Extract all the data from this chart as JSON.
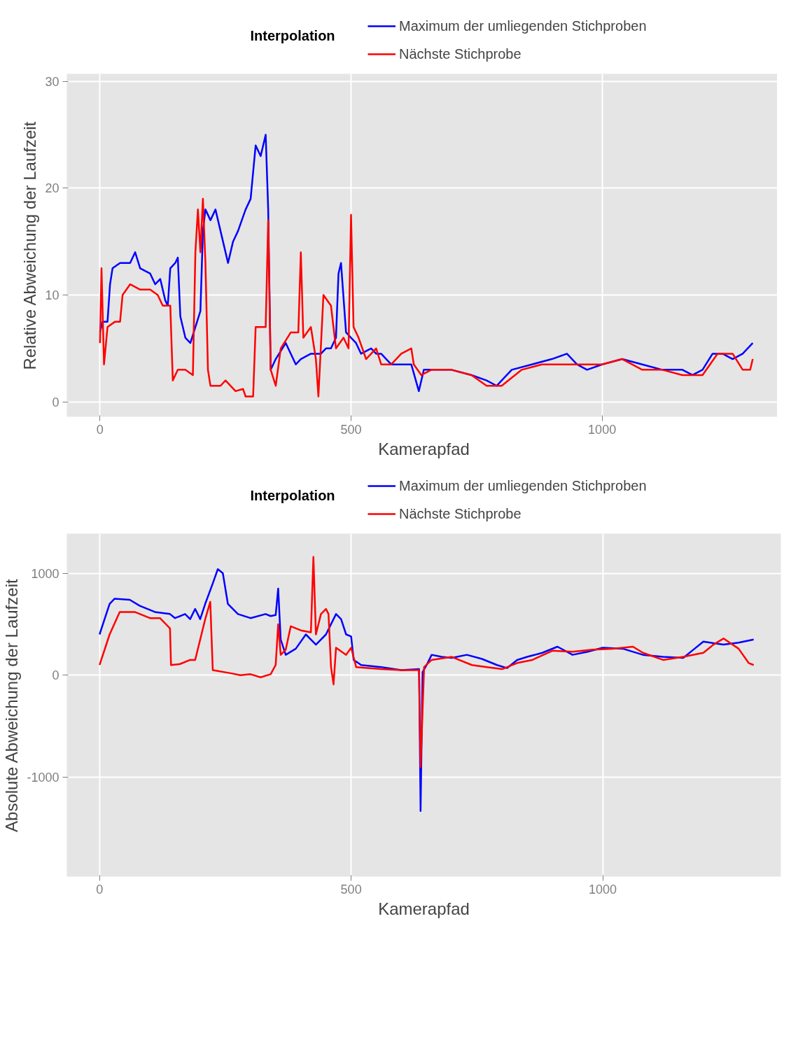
{
  "chart_data": [
    {
      "type": "line",
      "xlabel": "Kamerapfad",
      "ylabel": "Relative Abweichung der Laufzeit",
      "legend_title": "Interpolation",
      "legend": "top",
      "grid": true,
      "xlim": [
        -66,
        1356
      ],
      "ylim": [
        -1.4,
        30.7
      ],
      "xticks": [
        0,
        500,
        1000
      ],
      "yticks": [
        0,
        10,
        20,
        30
      ],
      "series": [
        {
          "name": "Maximum der umliegenden Stichproben",
          "color": "#0000ff",
          "x": [
            0,
            5,
            15,
            20,
            25,
            40,
            60,
            70,
            80,
            100,
            110,
            120,
            130,
            135,
            140,
            150,
            155,
            160,
            170,
            180,
            190,
            200,
            205,
            210,
            220,
            230,
            245,
            255,
            265,
            275,
            290,
            300,
            310,
            320,
            330,
            335,
            340,
            350,
            370,
            380,
            390,
            400,
            420,
            440,
            450,
            460,
            470,
            475,
            480,
            490,
            500,
            510,
            520,
            540,
            550,
            560,
            580,
            600,
            620,
            635,
            645,
            660,
            700,
            740,
            770,
            790,
            800,
            820,
            860,
            900,
            930,
            950,
            970,
            1000,
            1040,
            1080,
            1120,
            1160,
            1180,
            1200,
            1220,
            1240,
            1260,
            1280,
            1300
          ],
          "values": [
            6.5,
            7.5,
            7.5,
            11,
            12.5,
            13,
            13,
            14,
            12.5,
            12,
            11,
            11.5,
            9.5,
            9,
            12.5,
            13,
            13.5,
            8,
            6,
            5.5,
            7,
            8.5,
            16,
            18,
            17,
            18,
            15,
            13,
            15,
            16,
            18,
            19,
            24,
            23,
            25,
            18,
            3,
            4,
            5.5,
            4.5,
            3.5,
            4,
            4.5,
            4.5,
            5,
            5,
            6,
            12,
            13,
            6.5,
            6,
            5.5,
            4.5,
            5,
            4.5,
            4.5,
            3.5,
            3.5,
            3.5,
            1,
            3,
            3,
            3,
            2.5,
            2,
            1.5,
            2,
            3,
            3.5,
            4,
            4.5,
            3.5,
            3,
            3.5,
            4,
            3.5,
            3,
            3,
            2.5,
            3,
            4.5,
            4.5,
            4,
            4.5,
            5.5
          ]
        },
        {
          "name": "Nächste Stichprobe",
          "color": "#ff0000",
          "x": [
            0,
            3,
            8,
            15,
            30,
            40,
            45,
            60,
            80,
            100,
            115,
            125,
            140,
            145,
            155,
            170,
            185,
            190,
            195,
            200,
            205,
            210,
            215,
            220,
            240,
            250,
            270,
            285,
            290,
            305,
            310,
            330,
            335,
            340,
            350,
            360,
            380,
            395,
            400,
            405,
            420,
            430,
            435,
            445,
            460,
            470,
            485,
            495,
            500,
            505,
            515,
            530,
            550,
            560,
            580,
            600,
            620,
            625,
            640,
            660,
            700,
            740,
            770,
            800,
            840,
            880,
            920,
            950,
            1000,
            1040,
            1080,
            1120,
            1160,
            1200,
            1230,
            1260,
            1280,
            1295,
            1300
          ],
          "values": [
            5.5,
            12.5,
            3.5,
            7,
            7.5,
            7.5,
            10,
            11,
            10.5,
            10.5,
            10,
            9,
            9,
            2,
            3,
            3,
            2.5,
            14,
            18,
            14,
            19,
            13,
            3,
            1.5,
            1.5,
            2,
            1,
            1.2,
            0.5,
            0.5,
            7,
            7,
            17,
            3,
            1.5,
            5,
            6.5,
            6.5,
            14,
            6,
            7,
            4,
            0.5,
            10,
            9,
            5,
            6,
            5,
            17.5,
            7,
            6,
            4,
            5,
            3.5,
            3.5,
            4.5,
            5,
            3.5,
            2.5,
            3,
            3,
            2.5,
            1.5,
            1.5,
            3,
            3.5,
            3.5,
            3.5,
            3.5,
            4,
            3,
            3,
            2.5,
            2.5,
            4.5,
            4.5,
            3,
            3,
            4
          ]
        }
      ]
    },
    {
      "type": "line",
      "xlabel": "Kamerapfad",
      "ylabel": "Absolute Abweichung der Laufzeit",
      "legend_title": "Interpolation",
      "legend": "top",
      "grid": true,
      "xlim": [
        -65,
        1354
      ],
      "ylim": [
        -1974,
        1388
      ],
      "xticks": [
        0,
        500,
        1000
      ],
      "yticks": [
        -1000,
        0,
        1000
      ],
      "series": [
        {
          "name": "Maximum der umliegenden Stichproben",
          "color": "#0000ff",
          "x": [
            0,
            10,
            20,
            30,
            60,
            80,
            110,
            140,
            150,
            170,
            180,
            190,
            200,
            210,
            225,
            235,
            245,
            255,
            275,
            300,
            330,
            340,
            350,
            355,
            360,
            370,
            390,
            410,
            430,
            450,
            460,
            470,
            480,
            490,
            500,
            505,
            520,
            560,
            600,
            635,
            638,
            642,
            650,
            660,
            680,
            700,
            730,
            760,
            790,
            810,
            830,
            850,
            880,
            910,
            940,
            970,
            1000,
            1040,
            1080,
            1120,
            1160,
            1180,
            1200,
            1240,
            1270,
            1300
          ],
          "values": [
            400,
            550,
            700,
            750,
            740,
            680,
            620,
            600,
            560,
            600,
            550,
            650,
            550,
            700,
            900,
            1040,
            1000,
            700,
            600,
            560,
            600,
            580,
            590,
            850,
            350,
            200,
            260,
            400,
            300,
            400,
            500,
            600,
            550,
            400,
            380,
            150,
            100,
            80,
            50,
            60,
            -1330,
            30,
            100,
            200,
            180,
            170,
            200,
            160,
            100,
            70,
            150,
            180,
            220,
            280,
            200,
            230,
            270,
            260,
            200,
            180,
            170,
            250,
            330,
            300,
            320,
            350
          ]
        },
        {
          "name": "Nächste Stichprobe",
          "color": "#ff0000",
          "x": [
            0,
            20,
            40,
            70,
            100,
            120,
            140,
            142,
            160,
            180,
            190,
            210,
            220,
            225,
            260,
            280,
            300,
            320,
            340,
            350,
            355,
            360,
            370,
            380,
            400,
            420,
            425,
            430,
            440,
            450,
            455,
            460,
            465,
            470,
            490,
            500,
            510,
            560,
            600,
            635,
            638,
            645,
            660,
            700,
            740,
            770,
            800,
            830,
            860,
            900,
            940,
            980,
            1020,
            1060,
            1080,
            1120,
            1160,
            1200,
            1220,
            1240,
            1270,
            1290,
            1300
          ],
          "values": [
            100,
            400,
            620,
            620,
            560,
            560,
            460,
            100,
            110,
            150,
            150,
            550,
            720,
            50,
            20,
            0,
            10,
            -20,
            10,
            100,
            500,
            200,
            250,
            480,
            440,
            420,
            1160,
            400,
            600,
            650,
            600,
            80,
            -90,
            270,
            200,
            270,
            80,
            60,
            50,
            50,
            -900,
            80,
            150,
            180,
            100,
            80,
            60,
            120,
            150,
            240,
            230,
            250,
            260,
            280,
            220,
            150,
            180,
            220,
            300,
            360,
            260,
            120,
            100
          ]
        }
      ]
    }
  ]
}
